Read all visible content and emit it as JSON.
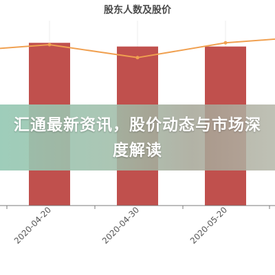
{
  "chart_data": {
    "type": "bar",
    "title": "股东人数及股价",
    "categories": [
      "2020-04-20",
      "2020-04-30",
      "2020-05-20"
    ],
    "series": [
      {
        "type": "bar",
        "values": [
          88,
          86,
          86
        ],
        "color": "#c0504d"
      },
      {
        "type": "line",
        "values": [
          87,
          80,
          88
        ],
        "color": "#f0a050"
      }
    ],
    "line_extent": {
      "left_value": 85,
      "right_value": 90
    },
    "ylim": [
      0,
      100
    ],
    "grid": true,
    "legend": "none"
  },
  "overlay": {
    "text": "汇通最新资讯，股价动态与市场深度解读"
  }
}
